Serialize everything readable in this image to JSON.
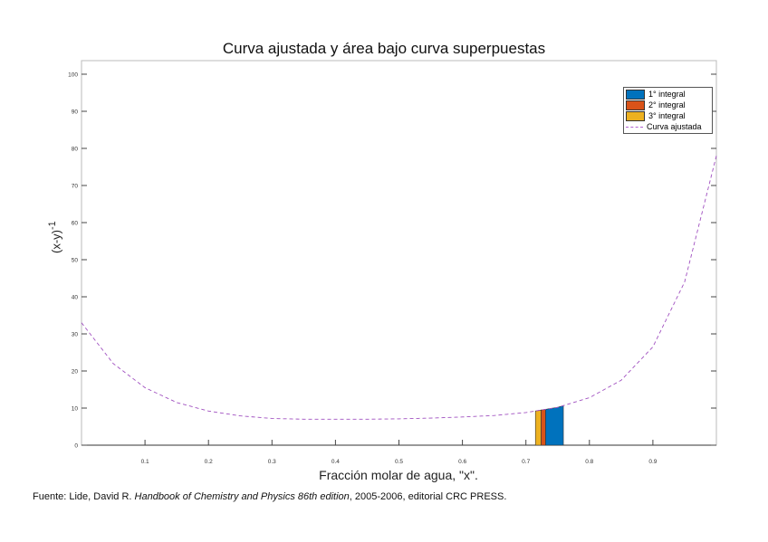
{
  "chart_data": {
    "type": "line",
    "title": "Curva ajustada y área bajo curva superpuestas",
    "xlabel": "Fracción molar de agua, \"x\".",
    "ylabel": "(x-y)",
    "ylabel_sup": "-1",
    "xlim": [
      0,
      1
    ],
    "ylim": [
      -3,
      103.6
    ],
    "xticks": [
      0.1,
      0.2,
      0.3,
      0.4,
      0.5,
      0.6,
      0.7,
      0.8,
      0.9
    ],
    "yticks": [
      0,
      10,
      20,
      30,
      40,
      50,
      60,
      70,
      80,
      90,
      100
    ],
    "grid": false,
    "legend_position": "top-right",
    "series": [
      {
        "name": "1° integral",
        "type": "area",
        "color": "#0072BD",
        "x": [
          0.731,
          0.759
        ]
      },
      {
        "name": "2° integral",
        "type": "area",
        "color": "#D95319",
        "x": [
          0.724,
          0.731
        ]
      },
      {
        "name": "3° integral",
        "type": "area",
        "color": "#EDB120",
        "x": [
          0.715,
          0.724
        ]
      },
      {
        "name": "Curva ajustada",
        "type": "line",
        "style": "dashed",
        "color": "#A050C0",
        "x": [
          0,
          0.05,
          0.1,
          0.15,
          0.2,
          0.25,
          0.3,
          0.35,
          0.4,
          0.45,
          0.5,
          0.55,
          0.6,
          0.65,
          0.7,
          0.75,
          0.8,
          0.85,
          0.9,
          0.95,
          1.0
        ],
        "y": [
          33,
          22,
          15.5,
          11.5,
          9.2,
          7.9,
          7.2,
          7.0,
          7.0,
          7.0,
          7.1,
          7.3,
          7.6,
          8.0,
          8.8,
          10.2,
          12.8,
          17.5,
          26.5,
          44,
          78
        ]
      }
    ]
  },
  "source": {
    "prefix": "Fuente: Lide, David R. ",
    "title": "Handbook of Chemistry and Physics 86th edition",
    "suffix": ", 2005-2006, editorial CRC PRESS."
  }
}
